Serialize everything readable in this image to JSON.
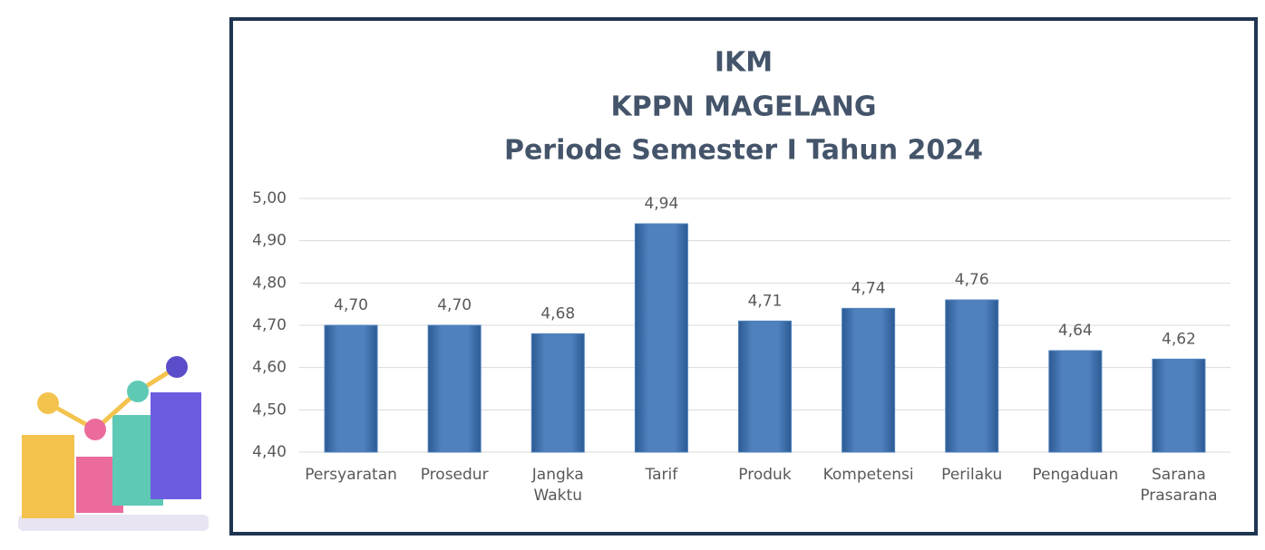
{
  "chart_data": {
    "type": "bar",
    "title_lines": [
      "IKM",
      "KPPN MAGELANG",
      "Periode Semester I Tahun 2024"
    ],
    "categories": [
      "Persyaratan",
      "Prosedur",
      "Jangka Waktu",
      "Tarif",
      "Produk",
      "Kompetensi",
      "Perilaku",
      "Pengaduan",
      "Sarana Prasarana"
    ],
    "values": [
      4.7,
      4.7,
      4.68,
      4.94,
      4.71,
      4.74,
      4.76,
      4.64,
      4.62
    ],
    "value_labels": [
      "4,70",
      "4,70",
      "4,68",
      "4,94",
      "4,71",
      "4,74",
      "4,76",
      "4,64",
      "4,62"
    ],
    "color": "#4f81bd",
    "ylim": [
      4.4,
      5.0
    ],
    "yticks": [
      {
        "value": 4.4,
        "label": "4,40"
      },
      {
        "value": 4.5,
        "label": "4,50"
      },
      {
        "value": 4.6,
        "label": "4,60"
      },
      {
        "value": 4.7,
        "label": "4,70"
      },
      {
        "value": 4.8,
        "label": "4,80"
      },
      {
        "value": 4.9,
        "label": "4,90"
      },
      {
        "value": 5.0,
        "label": "5,00"
      }
    ],
    "grid": true
  }
}
